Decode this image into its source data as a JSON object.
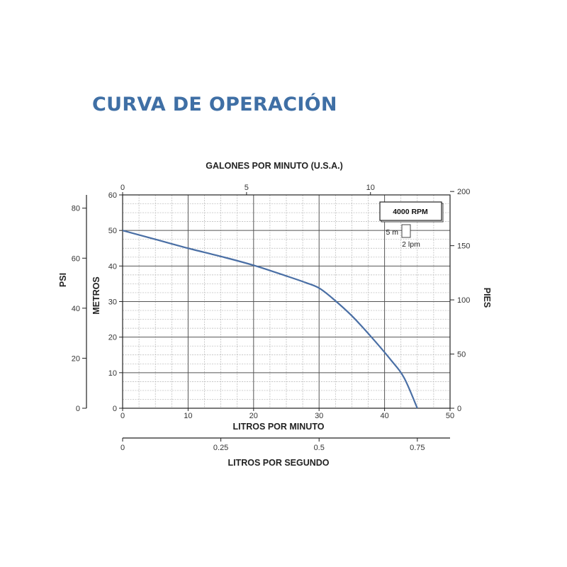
{
  "page": {
    "title": "CURVA DE OPERACIÓN"
  },
  "chart_data": {
    "type": "line",
    "series": [
      {
        "x": [
          0,
          5,
          10,
          15,
          20,
          25,
          28,
          30,
          32,
          35,
          38,
          41,
          43,
          45
        ],
        "y": [
          50,
          47.5,
          45,
          42.7,
          40.2,
          37.2,
          35.3,
          33.8,
          31,
          26,
          20,
          13.5,
          8.5,
          0
        ],
        "color": "#4a6fa5"
      }
    ],
    "axes": {
      "bottom": {
        "label": "LITROS POR MINUTO",
        "range": [
          0,
          50
        ],
        "ticks": [
          0,
          10,
          20,
          30,
          40,
          50
        ]
      },
      "left": {
        "label": "METROS",
        "range": [
          0,
          60
        ],
        "ticks": [
          0,
          10,
          20,
          30,
          40,
          50,
          60
        ]
      },
      "top": {
        "label": "GALONES POR MINUTO (U.S.A.)",
        "range": [
          0,
          13.21
        ],
        "ticks": [
          0,
          5,
          10
        ],
        "tick_labels": [
          "0",
          "5",
          "10"
        ]
      },
      "right": {
        "label": "PIES",
        "range": [
          0,
          196.85
        ],
        "ticks": [
          0,
          50,
          100,
          150,
          200
        ],
        "tick_labels": [
          "0",
          "50",
          "100",
          "150",
          "200"
        ]
      },
      "far_left": {
        "label": "PSI",
        "range": [
          0,
          85.3
        ],
        "ticks": [
          0,
          20,
          40,
          60,
          80
        ],
        "tick_labels": [
          "0",
          "20",
          "40",
          "60",
          "80"
        ]
      },
      "lower": {
        "label": "LITROS POR SEGUNDO",
        "range": [
          0,
          0.8333
        ],
        "ticks": [
          0,
          0.25,
          0.5,
          0.75
        ],
        "tick_labels": [
          "0",
          "0.25",
          "0.5",
          "0.75"
        ]
      }
    },
    "grid": {
      "major": true,
      "minor": true
    },
    "legend": {
      "rpm": "4000 RPM",
      "scale_head": "5 m",
      "scale_flow": "2 lpm",
      "position": "top-right"
    }
  }
}
